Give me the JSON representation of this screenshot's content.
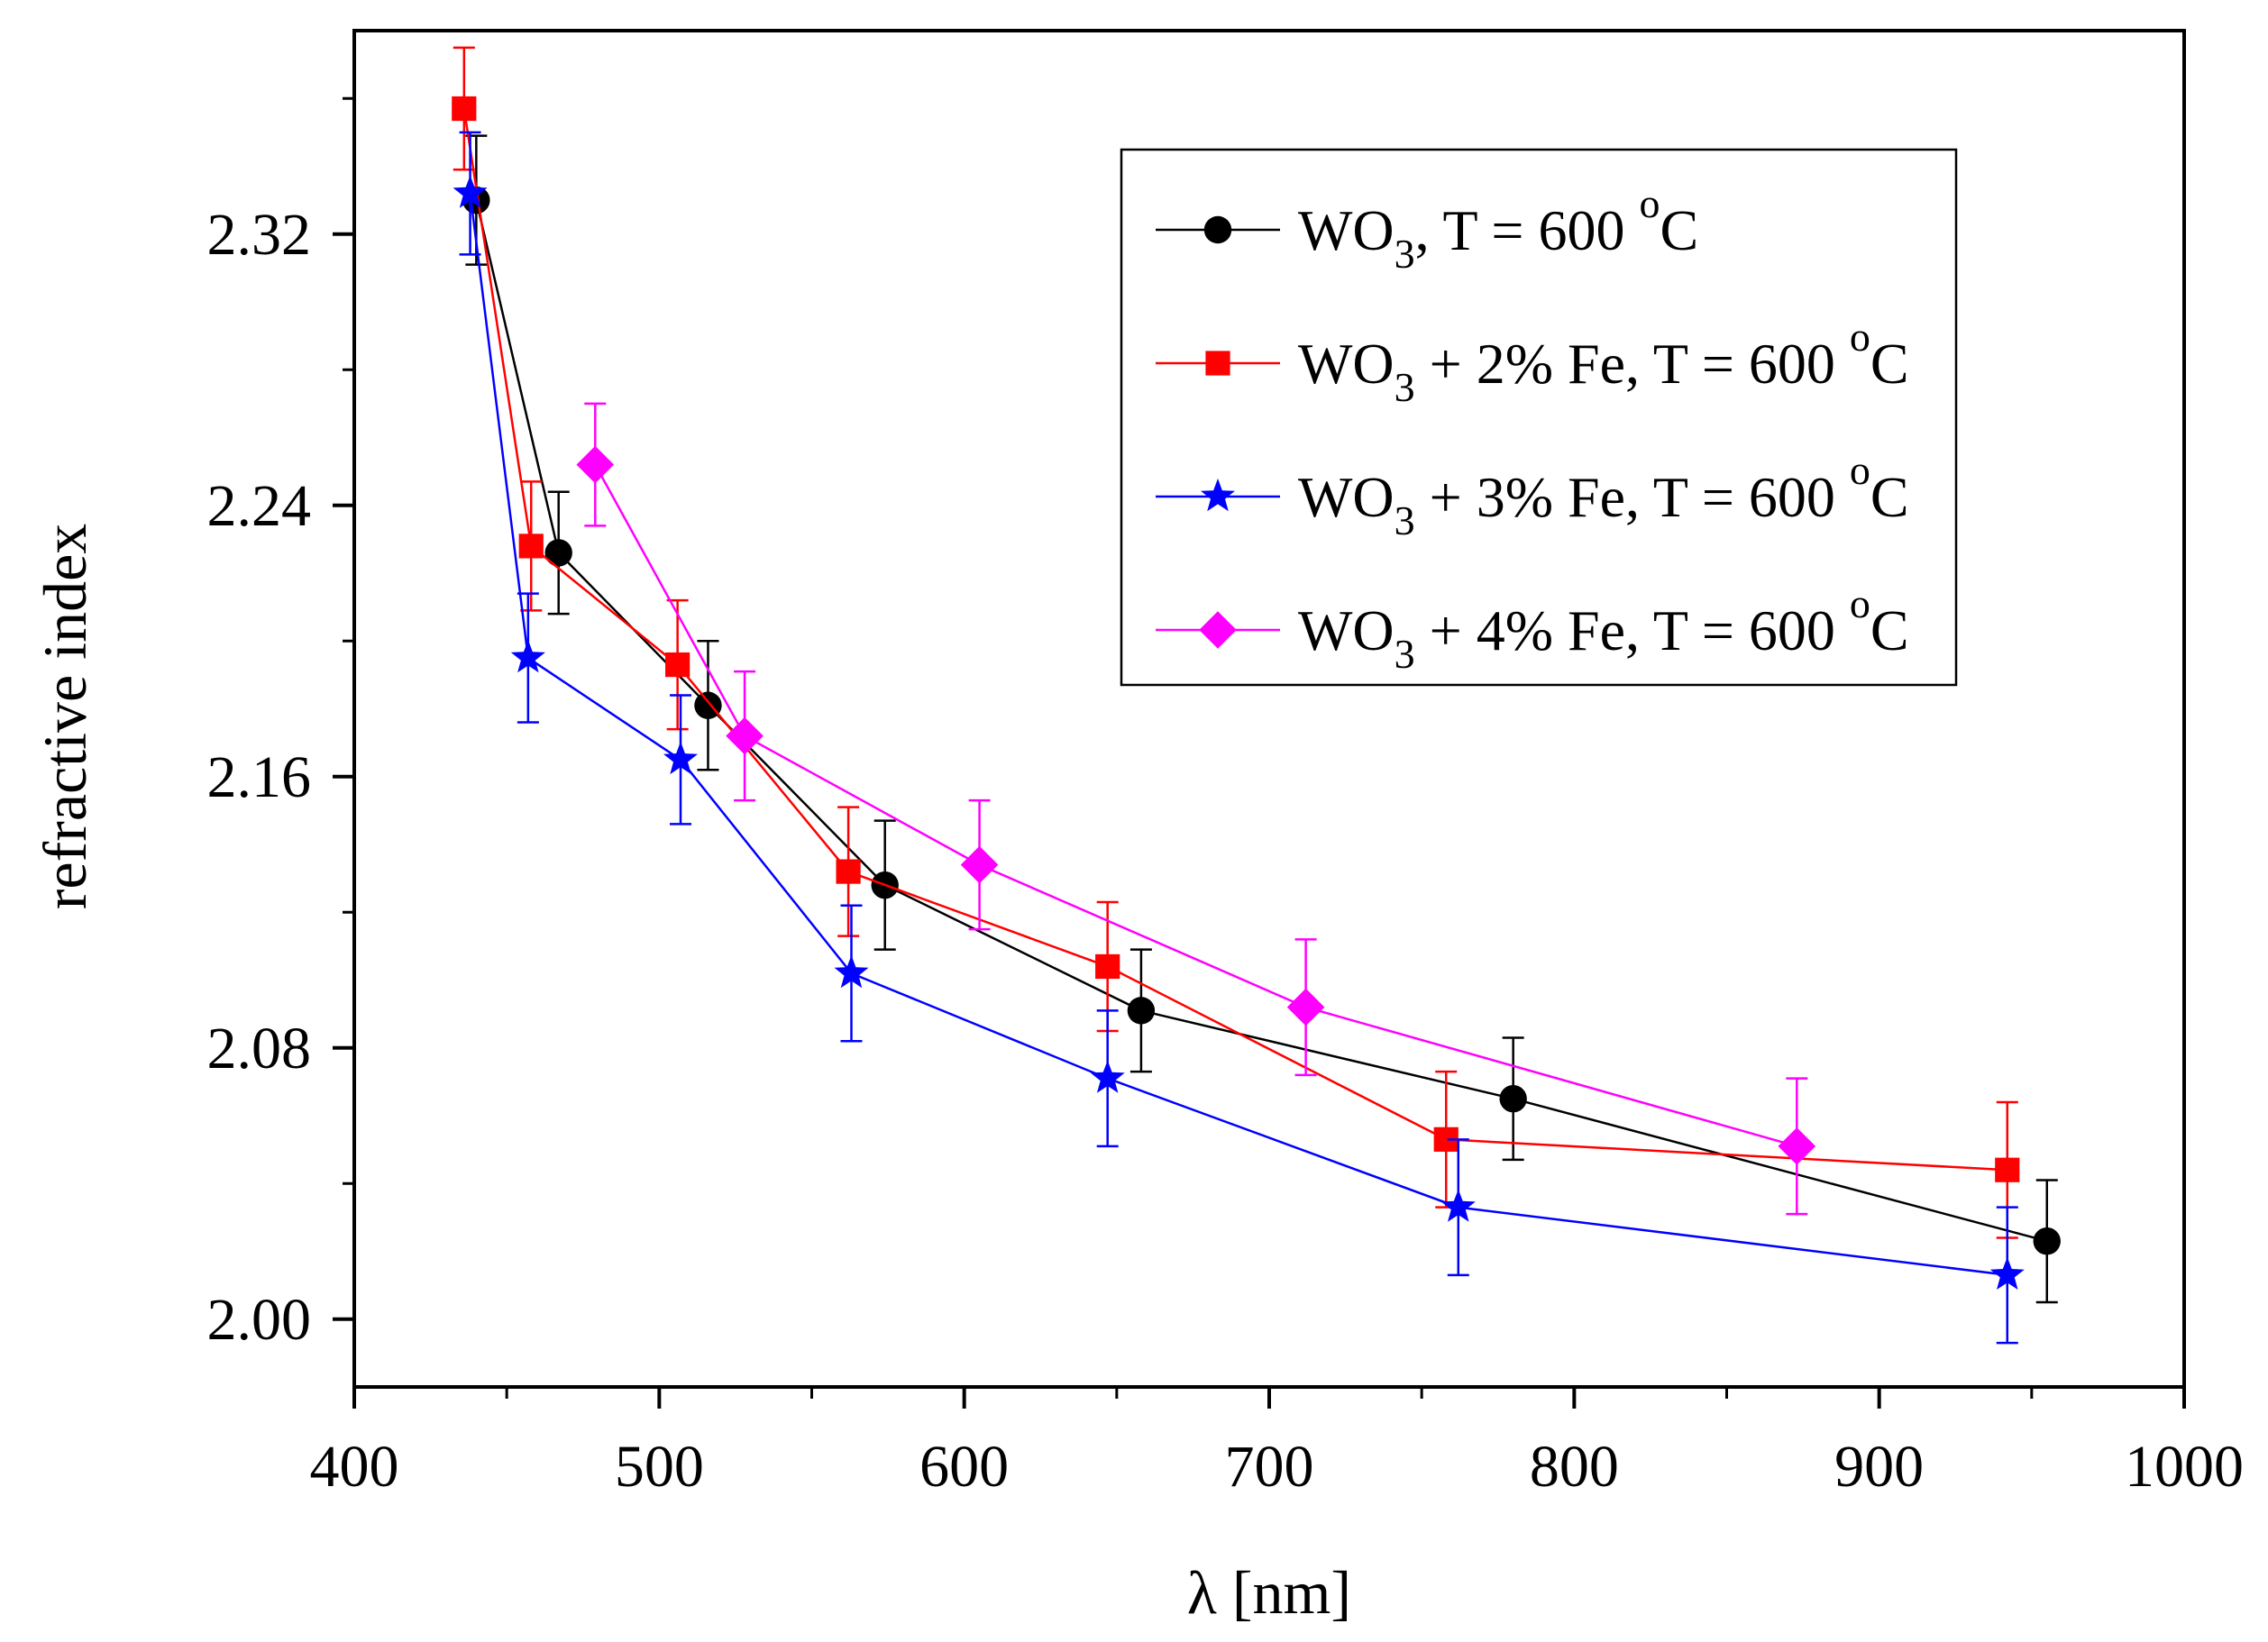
{
  "chart_data": {
    "type": "line",
    "title": "",
    "xlabel": "λ [nm]",
    "ylabel": "refractive index",
    "xlim": [
      400,
      1000
    ],
    "ylim": [
      1.98,
      2.38
    ],
    "x_ticks": [
      400,
      500,
      600,
      700,
      800,
      900,
      1000
    ],
    "x_tick_labels": [
      "400",
      "500",
      "600",
      "700",
      "800",
      "900",
      "1000"
    ],
    "y_ticks": [
      2.0,
      2.08,
      2.16,
      2.24,
      2.32
    ],
    "y_tick_labels": [
      "2.00",
      "2.08",
      "2.16",
      "2.24",
      "2.32"
    ],
    "grid": false,
    "legend_position": "top-right",
    "series": [
      {
        "name": "WO3, T = 600 oC",
        "legend": {
          "base": "WO",
          "sub": "3",
          "mid": ", T = 600 ",
          "sup": "o",
          "end": "C"
        },
        "color": "#000000",
        "marker": "circle",
        "x": [
          440,
          467,
          516,
          574,
          658,
          780,
          955
        ],
        "y": [
          2.33,
          2.226,
          2.181,
          2.128,
          2.091,
          2.065,
          2.023
        ],
        "err": [
          0.019,
          0.018,
          0.019,
          0.019,
          0.018,
          0.018,
          0.018
        ]
      },
      {
        "name": "WO3 + 2% Fe, T = 600 oC",
        "legend": {
          "base": "WO",
          "sub": "3",
          "mid": " + 2% Fe, T = 600 ",
          "sup": "o",
          "end": "C"
        },
        "color": "#ff0000",
        "marker": "square",
        "x": [
          436,
          458,
          506,
          562,
          647,
          758,
          942
        ],
        "y": [
          2.357,
          2.228,
          2.193,
          2.132,
          2.104,
          2.053,
          2.044
        ],
        "err": [
          0.018,
          0.019,
          0.019,
          0.019,
          0.019,
          0.02,
          0.02
        ]
      },
      {
        "name": "WO3 + 3% Fe, T = 600 oC",
        "legend": {
          "base": "WO",
          "sub": "3",
          "mid": " + 3% Fe, T = 600 ",
          "sup": "o",
          "end": "C"
        },
        "color": "#0000ff",
        "marker": "star",
        "x": [
          438,
          457,
          507,
          563,
          647,
          762,
          942
        ],
        "y": [
          2.332,
          2.195,
          2.165,
          2.102,
          2.071,
          2.033,
          2.013
        ],
        "err": [
          0.018,
          0.019,
          0.019,
          0.02,
          0.02,
          0.02,
          0.02
        ]
      },
      {
        "name": "WO3 + 4% Fe, T = 600 oC",
        "legend": {
          "base": "WO",
          "sub": "3",
          "mid": " + 4% Fe, T = 600 ",
          "sup": "o",
          "end": "C"
        },
        "color": "#ff00ff",
        "marker": "diamond",
        "x": [
          479,
          528,
          605,
          712,
          873
        ],
        "y": [
          2.252,
          2.172,
          2.134,
          2.092,
          2.051
        ],
        "err": [
          0.018,
          0.019,
          0.019,
          0.02,
          0.02
        ]
      }
    ]
  }
}
